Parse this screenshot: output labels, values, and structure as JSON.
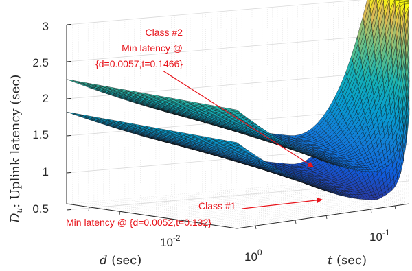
{
  "chart_data": {
    "type": "surface",
    "title": "",
    "zlabel": {
      "symbol": "D",
      "subscript": "u",
      "text": ": Uplink latency (sec)"
    },
    "xlabel": {
      "symbol": "d",
      "text": " (sec)"
    },
    "ylabel": {
      "symbol": "t",
      "text": " (sec)"
    },
    "z_ticks": [
      "0.5",
      "1",
      "1.5",
      "2",
      "2.5",
      "3"
    ],
    "z_tick_values": [
      0.5,
      1,
      1.5,
      2,
      2.5,
      3
    ],
    "zlim": [
      0.5,
      3
    ],
    "d_ticks": [
      {
        "base": "10",
        "exp": "-2"
      }
    ],
    "t_ticks": [
      {
        "base": "10",
        "exp": "0"
      },
      {
        "base": "10",
        "exp": "-1"
      }
    ],
    "d_scale": "log",
    "t_scale": "log",
    "colormap": "parula",
    "grid": true,
    "series": [
      {
        "name": "Class #1",
        "min_latency": 0.62,
        "d_at_min": 0.0052,
        "t_at_min": 0.132,
        "z_at_small_t": 1.66
      },
      {
        "name": "Class #2",
        "min_latency": 1.0,
        "d_at_min": 0.0057,
        "t_at_min": 0.1466,
        "z_at_small_t": 2.1
      }
    ],
    "annotations": [
      {
        "lines": [
          "Class #2",
          "Min latency @",
          "{d=0.0057,t=0.1466}"
        ]
      },
      {
        "lines": [
          "Class #1"
        ]
      },
      {
        "lines": [
          "Min latency @ {d=0.0052,t=0.132}"
        ]
      }
    ]
  },
  "colors": {
    "annotation": "#e8141b",
    "axis": "#262626",
    "grid": "#d9d9d9",
    "mesh_edge": "#111111"
  }
}
